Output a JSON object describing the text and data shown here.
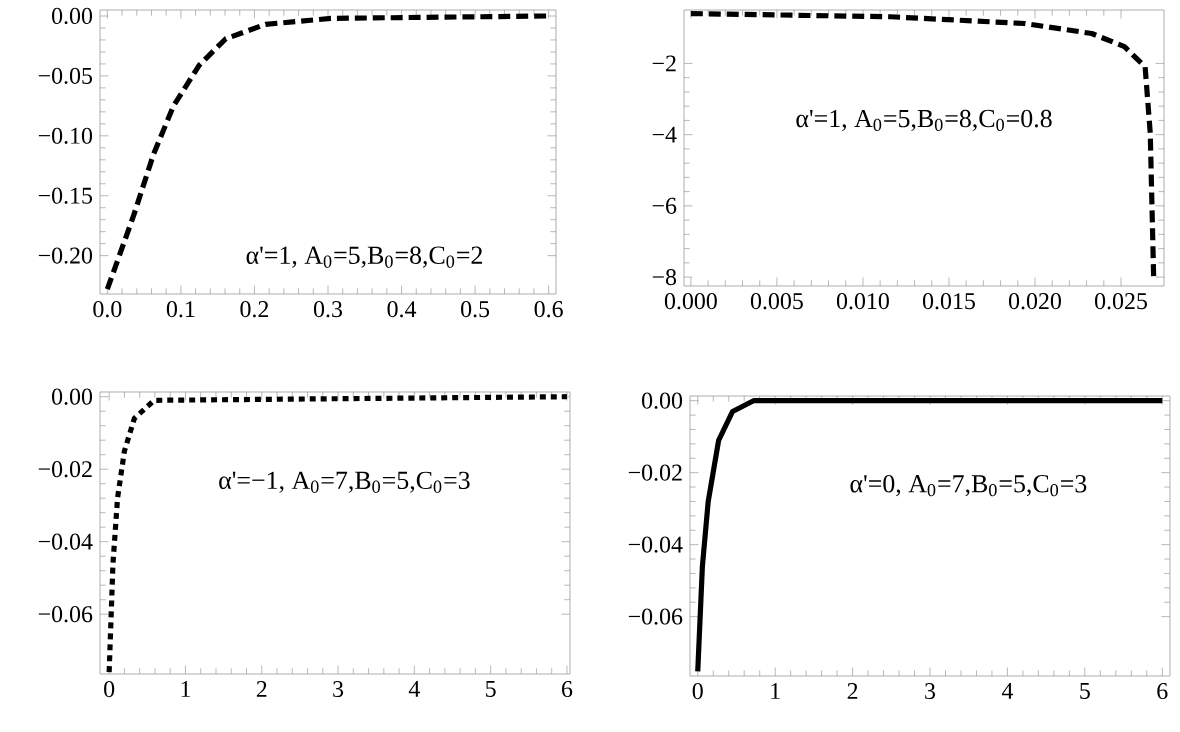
{
  "chart_data": [
    {
      "type": "line",
      "annotations": [
        "α'=1, A$_{0}$=5,B$_{0}$=8,C$_{0}$=2"
      ],
      "x": [
        0,
        0.036,
        0.063,
        0.09,
        0.125,
        0.161,
        0.215,
        0.304,
        0.6
      ],
      "series": [
        {
          "color": "#000000",
          "line_style": "dashed",
          "values": [
            -0.228,
            -0.166,
            -0.115,
            -0.075,
            -0.041,
            -0.019,
            -0.007,
            -0.002,
            0
          ]
        }
      ],
      "xlim": [
        -0.01,
        0.61
      ],
      "ylim": [
        -0.232,
        0.005
      ],
      "grid": false,
      "xticks": [
        {
          "value": 0,
          "label": "0.0"
        },
        {
          "value": 0.1,
          "label": "0.1"
        },
        {
          "value": 0.2,
          "label": "0.2"
        },
        {
          "value": 0.3,
          "label": "0.3"
        },
        {
          "value": 0.4,
          "label": "0.4"
        },
        {
          "value": 0.5,
          "label": "0.5"
        },
        {
          "value": 0.6,
          "label": "0.6"
        }
      ],
      "yticks": [
        {
          "value": 0,
          "label": "0.00"
        },
        {
          "value": -0.05,
          "label": "−0.05"
        },
        {
          "value": -0.1,
          "label": "−0.10"
        },
        {
          "value": -0.15,
          "label": "−0.15"
        },
        {
          "value": -0.2,
          "label": "−0.20"
        }
      ]
    },
    {
      "type": "line",
      "annotations": [
        "α'=1, A$_{0}$=5,B$_{0}$=8,C$_{0}$=0.8"
      ],
      "x": [
        0,
        0.0116,
        0.0194,
        0.0233,
        0.0252,
        0.0264,
        0.0267,
        0.0269
      ],
      "series": [
        {
          "color": "#000000",
          "line_style": "dashed",
          "values": [
            -0.6,
            -0.69,
            -0.88,
            -1.16,
            -1.53,
            -2.09,
            -3.96,
            -8.06
          ]
        }
      ],
      "xlim": [
        -0.0004,
        0.0275
      ],
      "ylim": [
        -8.25,
        -0.5
      ],
      "grid": false,
      "xticks": [
        {
          "value": 0,
          "label": "0.000"
        },
        {
          "value": 0.005,
          "label": "0.005"
        },
        {
          "value": 0.01,
          "label": "0.010"
        },
        {
          "value": 0.015,
          "label": "0.015"
        },
        {
          "value": 0.02,
          "label": "0.020"
        },
        {
          "value": 0.025,
          "label": "0.025"
        }
      ],
      "yticks": [
        {
          "value": -2,
          "label": "−2"
        },
        {
          "value": -4,
          "label": "−4"
        },
        {
          "value": -6,
          "label": "−6"
        },
        {
          "value": -8,
          "label": "−8"
        }
      ]
    },
    {
      "type": "line",
      "annotations": [
        "α'=−1, A$_{0}$=7,B$_{0}$=5,C$_{0}$=3"
      ],
      "x": [
        0,
        0.05,
        0.11,
        0.2,
        0.33,
        0.59,
        6
      ],
      "series": [
        {
          "color": "#000000",
          "line_style": "dotted",
          "values": [
            -0.076,
            -0.046,
            -0.028,
            -0.015,
            -0.006,
            -0.001,
            0
          ]
        }
      ],
      "xlim": [
        -0.12,
        6.04
      ],
      "ylim": [
        -0.0765,
        0.0013
      ],
      "grid": false,
      "xticks": [
        0,
        1,
        2,
        3,
        4,
        5,
        6
      ],
      "yticks": [
        {
          "value": 0,
          "label": "0.00"
        },
        {
          "value": -0.02,
          "label": "−0.02"
        },
        {
          "value": -0.04,
          "label": "−0.04"
        },
        {
          "value": -0.06,
          "label": "−0.06"
        }
      ]
    },
    {
      "type": "line",
      "annotations": [
        "α'=0, A$_{0}$=7,B$_{0}$=5,C$_{0}$=3"
      ],
      "x": [
        0,
        0.06,
        0.135,
        0.27,
        0.45,
        0.72,
        6
      ],
      "series": [
        {
          "color": "#000000",
          "line_style": "solid",
          "values": [
            -0.0752,
            -0.046,
            -0.028,
            -0.011,
            -0.003,
            0,
            0
          ]
        }
      ],
      "xlim": [
        -0.1,
        6.1
      ],
      "ylim": [
        -0.0765,
        0.0013
      ],
      "grid": false,
      "xticks": [
        0,
        1,
        2,
        3,
        4,
        5,
        6
      ],
      "yticks": [
        {
          "value": 0,
          "label": "0.00"
        },
        {
          "value": -0.02,
          "label": "−0.02"
        },
        {
          "value": -0.04,
          "label": "−0.04"
        },
        {
          "value": -0.06,
          "label": "−0.06"
        }
      ]
    }
  ]
}
